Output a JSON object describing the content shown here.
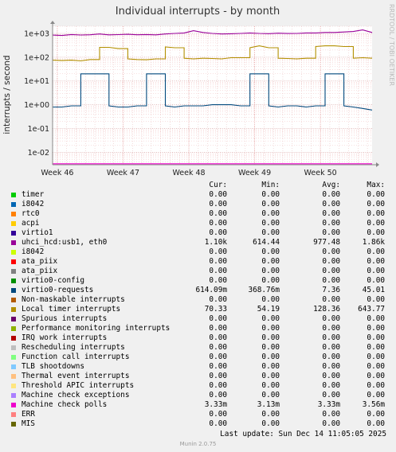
{
  "page": {
    "title": "Individual interrupts - by month",
    "side_text": "RRDTOOL / TOBI OETIKER",
    "last_update": "Last update: Sun Dec 14 11:05:05 2025",
    "footer": "Munin 2.0.75"
  },
  "legend_header": {
    "cur": "Cur:",
    "min": "Min:",
    "avg": "Avg:",
    "max": "Max:"
  },
  "legend": [
    {
      "name": "timer",
      "color": "#00cc00",
      "cur": "0.00",
      "min": "0.00",
      "avg": "0.00",
      "max": "0.00"
    },
    {
      "name": "i8042",
      "color": "#0066b3",
      "cur": "0.00",
      "min": "0.00",
      "avg": "0.00",
      "max": "0.00"
    },
    {
      "name": "rtc0",
      "color": "#ff8000",
      "cur": "0.00",
      "min": "0.00",
      "avg": "0.00",
      "max": "0.00"
    },
    {
      "name": "acpi",
      "color": "#ffcc00",
      "cur": "0.00",
      "min": "0.00",
      "avg": "0.00",
      "max": "0.00"
    },
    {
      "name": "virtio1",
      "color": "#330099",
      "cur": "0.00",
      "min": "0.00",
      "avg": "0.00",
      "max": "0.00"
    },
    {
      "name": "uhci_hcd:usb1, eth0",
      "color": "#990099",
      "cur": "1.10k",
      "min": "614.44",
      "avg": "977.48",
      "max": "1.86k"
    },
    {
      "name": "i8042",
      "color": "#ccff00",
      "cur": "0.00",
      "min": "0.00",
      "avg": "0.00",
      "max": "0.00"
    },
    {
      "name": "ata_piix",
      "color": "#ff0000",
      "cur": "0.00",
      "min": "0.00",
      "avg": "0.00",
      "max": "0.00"
    },
    {
      "name": "ata_piix",
      "color": "#808080",
      "cur": "0.00",
      "min": "0.00",
      "avg": "0.00",
      "max": "0.00"
    },
    {
      "name": "virtio0-config",
      "color": "#008f00",
      "cur": "0.00",
      "min": "0.00",
      "avg": "0.00",
      "max": "0.00"
    },
    {
      "name": "virtio0-requests",
      "color": "#00487d",
      "cur": "614.09m",
      "min": "368.76m",
      "avg": "7.36",
      "max": "45.01"
    },
    {
      "name": "Non-maskable interrupts",
      "color": "#b35a00",
      "cur": "0.00",
      "min": "0.00",
      "avg": "0.00",
      "max": "0.00"
    },
    {
      "name": "Local timer interrupts",
      "color": "#b38f00",
      "cur": "70.33",
      "min": "54.19",
      "avg": "128.36",
      "max": "643.77"
    },
    {
      "name": "Spurious interrupts",
      "color": "#6b006b",
      "cur": "0.00",
      "min": "0.00",
      "avg": "0.00",
      "max": "0.00"
    },
    {
      "name": "Performance monitoring interrupts",
      "color": "#8fb300",
      "cur": "0.00",
      "min": "0.00",
      "avg": "0.00",
      "max": "0.00"
    },
    {
      "name": "IRQ work interrupts",
      "color": "#b30000",
      "cur": "0.00",
      "min": "0.00",
      "avg": "0.00",
      "max": "0.00"
    },
    {
      "name": "Rescheduling interrupts",
      "color": "#bebebe",
      "cur": "0.00",
      "min": "0.00",
      "avg": "0.00",
      "max": "0.00"
    },
    {
      "name": "Function call interrupts",
      "color": "#80ff80",
      "cur": "0.00",
      "min": "0.00",
      "avg": "0.00",
      "max": "0.00"
    },
    {
      "name": "TLB shootdowns",
      "color": "#80c9ff",
      "cur": "0.00",
      "min": "0.00",
      "avg": "0.00",
      "max": "0.00"
    },
    {
      "name": "Thermal event interrupts",
      "color": "#ffc080",
      "cur": "0.00",
      "min": "0.00",
      "avg": "0.00",
      "max": "0.00"
    },
    {
      "name": "Threshold APIC interrupts",
      "color": "#ffe680",
      "cur": "0.00",
      "min": "0.00",
      "avg": "0.00",
      "max": "0.00"
    },
    {
      "name": "Machine check exceptions",
      "color": "#aa80ff",
      "cur": "0.00",
      "min": "0.00",
      "avg": "0.00",
      "max": "0.00"
    },
    {
      "name": "Machine check polls",
      "color": "#ee00cc",
      "cur": "3.33m",
      "min": "3.13m",
      "avg": "3.33m",
      "max": "3.56m"
    },
    {
      "name": "ERR",
      "color": "#ff8080",
      "cur": "0.00",
      "min": "0.00",
      "avg": "0.00",
      "max": "0.00"
    },
    {
      "name": "MIS",
      "color": "#666600",
      "cur": "0.00",
      "min": "0.00",
      "avg": "0.00",
      "max": "0.00"
    }
  ],
  "chart_data": {
    "type": "line",
    "title": "Individual interrupts - by month",
    "ylabel": "interrupts / second",
    "yscale": "log",
    "ylim": [
      0.003,
      2000
    ],
    "y_ticks": [
      {
        "value": 0.01,
        "label": "1e-02"
      },
      {
        "value": 0.1,
        "label": "1e-01"
      },
      {
        "value": 1,
        "label": "1e+00"
      },
      {
        "value": 10,
        "label": "1e+01"
      },
      {
        "value": 100,
        "label": "1e+02"
      },
      {
        "value": 1000,
        "label": "1e+03"
      }
    ],
    "x_ticks": [
      {
        "value": 0.5,
        "label": "Week 46"
      },
      {
        "value": 7.5,
        "label": "Week 47"
      },
      {
        "value": 14.5,
        "label": "Week 48"
      },
      {
        "value": 21.5,
        "label": "Week 49"
      },
      {
        "value": 28.5,
        "label": "Week 50"
      }
    ],
    "xlim": [
      0,
      34
    ],
    "grid": true,
    "series": [
      {
        "name": "uhci_hcd:usb1, eth0",
        "color": "#990099",
        "points": [
          [
            0,
            850
          ],
          [
            1,
            820
          ],
          [
            2,
            900
          ],
          [
            3,
            860
          ],
          [
            4,
            880
          ],
          [
            5,
            950
          ],
          [
            6,
            870
          ],
          [
            7,
            890
          ],
          [
            8,
            920
          ],
          [
            9,
            880
          ],
          [
            10,
            900
          ],
          [
            11,
            870
          ],
          [
            12,
            950
          ],
          [
            13,
            1000
          ],
          [
            14,
            1050
          ],
          [
            15,
            1300
          ],
          [
            16,
            1100
          ],
          [
            17,
            1000
          ],
          [
            18,
            950
          ],
          [
            19,
            970
          ],
          [
            20,
            1000
          ],
          [
            21,
            1050
          ],
          [
            22,
            1000
          ],
          [
            23,
            980
          ],
          [
            24,
            1020
          ],
          [
            25,
            990
          ],
          [
            26,
            1000
          ],
          [
            27,
            1050
          ],
          [
            28,
            1050
          ],
          [
            29,
            1100
          ],
          [
            30,
            1100
          ],
          [
            31,
            1150
          ],
          [
            32,
            1200
          ],
          [
            33,
            1400
          ],
          [
            34,
            1100
          ]
        ]
      },
      {
        "name": "Local timer interrupts",
        "color": "#b38f00",
        "points": [
          [
            0,
            75
          ],
          [
            1,
            72
          ],
          [
            2,
            75
          ],
          [
            3,
            70
          ],
          [
            4,
            80
          ],
          [
            5,
            260
          ],
          [
            6,
            260
          ],
          [
            7,
            230
          ],
          [
            8,
            85
          ],
          [
            9,
            80
          ],
          [
            10,
            78
          ],
          [
            11,
            85
          ],
          [
            12,
            270
          ],
          [
            13,
            250
          ],
          [
            14,
            90
          ],
          [
            15,
            85
          ],
          [
            16,
            90
          ],
          [
            17,
            88
          ],
          [
            18,
            85
          ],
          [
            19,
            95
          ],
          [
            20,
            95
          ],
          [
            21,
            250
          ],
          [
            22,
            300
          ],
          [
            23,
            250
          ],
          [
            24,
            90
          ],
          [
            25,
            88
          ],
          [
            26,
            85
          ],
          [
            27,
            90
          ],
          [
            28,
            280
          ],
          [
            29,
            300
          ],
          [
            30,
            300
          ],
          [
            31,
            280
          ],
          [
            32,
            90
          ],
          [
            33,
            95
          ],
          [
            34,
            90
          ]
        ]
      },
      {
        "name": "virtio0-requests",
        "color": "#00487d",
        "points": [
          [
            0,
            0.8
          ],
          [
            1,
            0.8
          ],
          [
            2,
            0.9
          ],
          [
            3,
            20
          ],
          [
            4,
            20
          ],
          [
            5,
            20
          ],
          [
            6,
            0.9
          ],
          [
            7,
            0.8
          ],
          [
            8,
            0.8
          ],
          [
            9,
            0.9
          ],
          [
            10,
            20
          ],
          [
            11,
            20
          ],
          [
            12,
            0.9
          ],
          [
            13,
            0.8
          ],
          [
            14,
            0.9
          ],
          [
            15,
            0.9
          ],
          [
            16,
            0.9
          ],
          [
            17,
            1.0
          ],
          [
            18,
            1.0
          ],
          [
            19,
            1.0
          ],
          [
            20,
            0.9
          ],
          [
            21,
            20
          ],
          [
            22,
            20
          ],
          [
            23,
            0.9
          ],
          [
            24,
            0.8
          ],
          [
            25,
            0.9
          ],
          [
            26,
            0.9
          ],
          [
            27,
            0.8
          ],
          [
            28,
            0.9
          ],
          [
            29,
            20
          ],
          [
            30,
            20
          ],
          [
            31,
            0.9
          ],
          [
            32,
            0.8
          ],
          [
            33,
            0.7
          ],
          [
            34,
            0.6
          ]
        ]
      },
      {
        "name": "Machine check polls",
        "color": "#ee00cc",
        "points": [
          [
            0,
            0.0033
          ],
          [
            34,
            0.0033
          ]
        ]
      }
    ]
  }
}
